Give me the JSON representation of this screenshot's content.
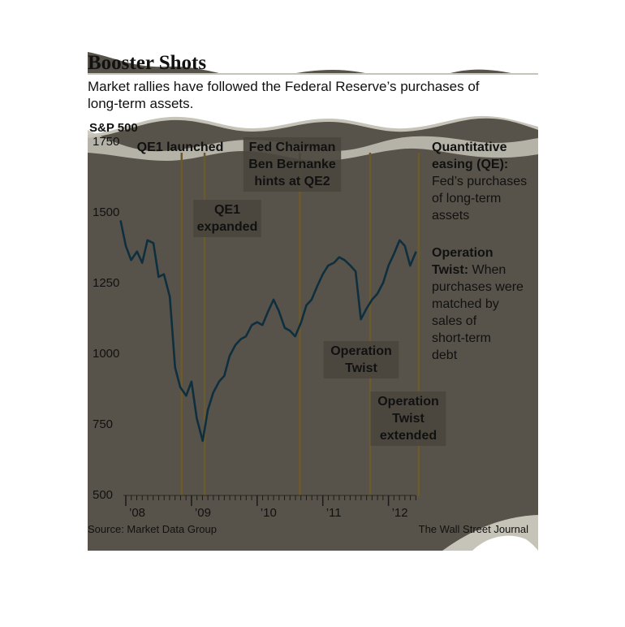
{
  "header": {
    "title": "Booster Shots",
    "subtitle_lines": [
      "Market rallies have followed the Federal Reserve’s purchases of",
      "long-term assets."
    ]
  },
  "chart_data": {
    "type": "line",
    "ylabel": "S&P 500",
    "ylim": [
      500,
      1750
    ],
    "yticks": [
      500,
      750,
      1000,
      1250,
      1500,
      1750
    ],
    "xlim": [
      2008.0,
      2012.45
    ],
    "xticks": [
      {
        "x": 2008,
        "label": "’08"
      },
      {
        "x": 2009,
        "label": "’09"
      },
      {
        "x": 2010,
        "label": "’10"
      },
      {
        "x": 2011,
        "label": "’11"
      },
      {
        "x": 2012,
        "label": "’12"
      }
    ],
    "series": [
      {
        "x": [
          2007.92,
          2008.0,
          2008.08,
          2008.17,
          2008.25,
          2008.33,
          2008.42,
          2008.5,
          2008.58,
          2008.67,
          2008.75,
          2008.83,
          2008.92,
          2009.0,
          2009.08,
          2009.17,
          2009.25,
          2009.33,
          2009.42,
          2009.5,
          2009.58,
          2009.67,
          2009.75,
          2009.83,
          2009.92,
          2010.0,
          2010.08,
          2010.17,
          2010.25,
          2010.33,
          2010.42,
          2010.5,
          2010.58,
          2010.67,
          2010.75,
          2010.83,
          2010.92,
          2011.0,
          2011.08,
          2011.17,
          2011.25,
          2011.33,
          2011.42,
          2011.5,
          2011.58,
          2011.67,
          2011.75,
          2011.83,
          2011.92,
          2012.0,
          2012.08,
          2012.17,
          2012.25,
          2012.33,
          2012.42
        ],
        "values": [
          1470,
          1380,
          1330,
          1360,
          1320,
          1400,
          1390,
          1270,
          1280,
          1200,
          950,
          880,
          850,
          900,
          770,
          690,
          800,
          860,
          900,
          920,
          990,
          1030,
          1050,
          1060,
          1100,
          1110,
          1100,
          1150,
          1190,
          1150,
          1090,
          1080,
          1060,
          1110,
          1170,
          1190,
          1240,
          1280,
          1310,
          1320,
          1340,
          1330,
          1310,
          1290,
          1120,
          1160,
          1190,
          1210,
          1250,
          1310,
          1350,
          1400,
          1380,
          1310,
          1360
        ]
      }
    ],
    "events": [
      {
        "x": 2008.85,
        "lines": [
          "QE1 launched"
        ]
      },
      {
        "x": 2009.2,
        "lines": [
          "QE1",
          "expanded"
        ]
      },
      {
        "x": 2010.65,
        "lines": [
          "Fed Chairman",
          "Ben Bernanke",
          "hints at QE2"
        ]
      },
      {
        "x": 2011.72,
        "lines": [
          "Operation",
          "Twist"
        ]
      },
      {
        "x": 2012.46,
        "lines": [
          "Operation",
          "Twist",
          "extended"
        ]
      }
    ],
    "legend_notes": [
      {
        "bold": "Quantitative easing (QE):",
        "text": "Fed’s purchases of long-term assets"
      },
      {
        "bold": "Operation Twist:",
        "text": "When purchases were matched by sales of short-term debt"
      }
    ],
    "colors": {
      "background": "#57534a",
      "line": "#0f2f3e",
      "event_line": "#6b5a30",
      "label_box": "#4a463d",
      "wave": "#c6c3b8"
    }
  },
  "legend_text": {
    "qe": [
      "Quantitative",
      "easing (QE):",
      "Fed’s purchases",
      "of long-term",
      "assets"
    ],
    "twist": [
      "Operation",
      "Twist:",
      " When",
      "purchases were",
      "matched by",
      "sales of",
      "short-term",
      "debt"
    ]
  },
  "footer": {
    "source": "Source: Market Data Group",
    "credit": "The Wall Street Journal"
  }
}
